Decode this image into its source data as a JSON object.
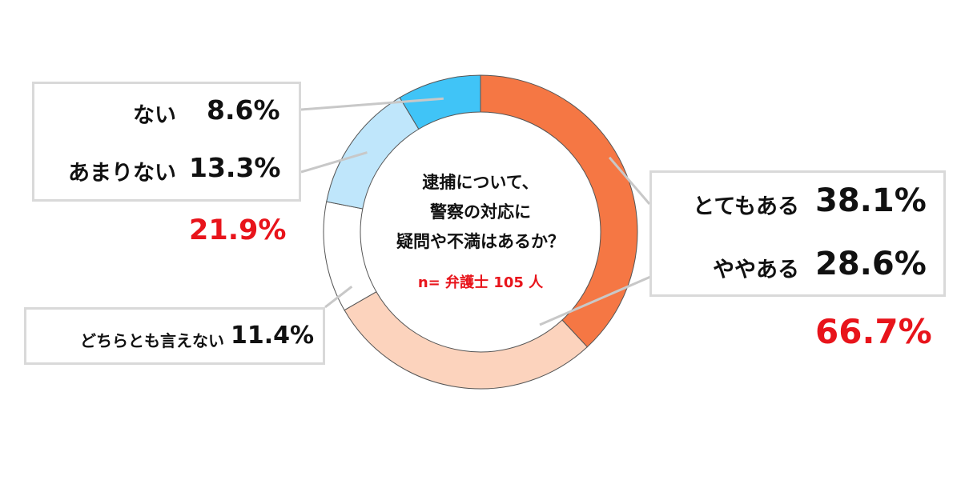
{
  "chart_data": {
    "type": "pie",
    "donut": true,
    "title_lines": [
      "逮捕について、",
      "警察の対応に",
      "疑問や不満はあるか？"
    ],
    "sample_note": "n= 弁護士 105 人",
    "start_angle": "top",
    "direction": "clockwise",
    "slices": [
      {
        "label": "とてもある",
        "value": 38.1,
        "display": "38.1%",
        "color": "#f57744"
      },
      {
        "label": "ややある",
        "value": 28.6,
        "display": "28.6%",
        "color": "#fcd3bd"
      },
      {
        "label": "どちらとも言えない",
        "value": 11.4,
        "display": "11.4%",
        "color": "#ffffff"
      },
      {
        "label": "あまりない",
        "value": 13.3,
        "display": "13.3%",
        "color": "#bfe6fb"
      },
      {
        "label": "ない",
        "value": 8.6,
        "display": "8.6%",
        "color": "#40c4f7"
      }
    ],
    "group_totals": {
      "positive": "66.7%",
      "negative": "21.9%"
    },
    "total_color": "#e8141b",
    "legend": "callout-boxes"
  }
}
